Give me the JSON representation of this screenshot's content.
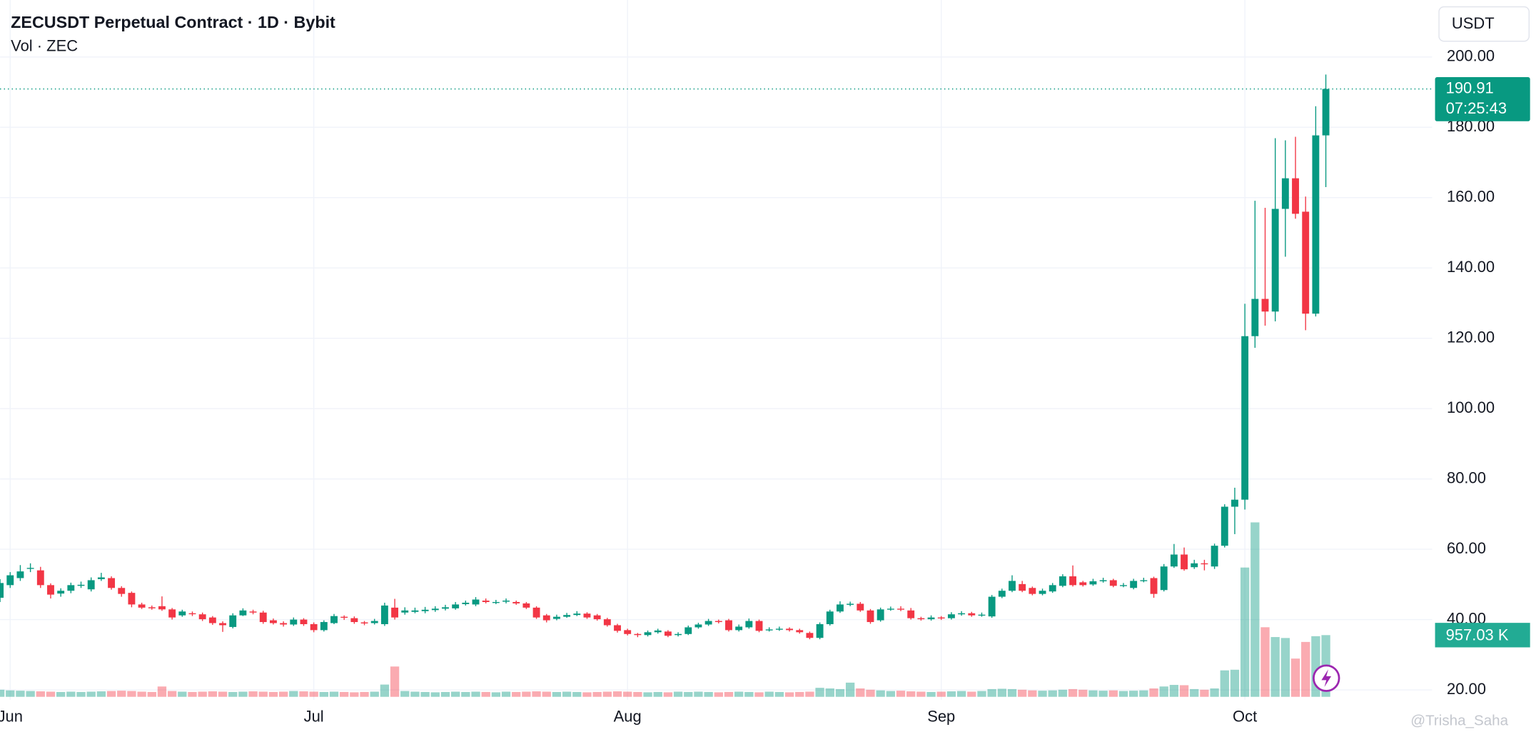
{
  "chart_data": {
    "type": "candlestick",
    "title": "ZECUSDT Perpetual Contract · 1D · Bybit",
    "subtitle": "Vol · ZEC",
    "currency": "USDT",
    "up_color": "#089981",
    "down_color": "#f23645",
    "open": [
      46.2,
      49.8,
      51.8,
      54.5,
      54.0,
      49.8,
      47.4,
      48.2,
      49.6,
      48.6,
      51.5,
      51.8,
      49.0,
      47.6,
      44.3,
      43.5,
      43.8,
      42.9,
      41.2,
      41.8,
      41.5,
      40.6,
      39.0,
      37.9,
      41.2,
      42.3,
      42.0,
      39.8,
      39.0,
      38.6,
      40.0,
      38.7,
      37.0,
      39.0,
      40.8,
      40.4,
      39.2,
      39.0,
      38.7,
      43.4,
      42.0,
      42.2,
      42.4,
      42.7,
      43.1,
      43.2,
      44.4,
      44.3,
      45.4,
      44.8,
      45.1,
      45.0,
      44.6,
      43.4,
      41.2,
      40.2,
      40.8,
      41.3,
      41.7,
      41.2,
      40.1,
      38.4,
      37.0,
      35.9,
      35.6,
      36.4,
      36.6,
      35.6,
      35.9,
      37.8,
      38.6,
      39.6,
      39.8,
      37.0,
      37.8,
      39.6,
      37.0,
      37.2,
      37.4,
      37.0,
      36.2,
      34.8,
      38.7,
      42.3,
      44.2,
      44.5,
      42.6,
      39.8,
      42.9,
      43.1,
      42.6,
      40.4,
      40.1,
      40.6,
      40.4,
      41.5,
      41.8,
      41.2,
      40.9,
      46.5,
      48.2,
      50.1,
      49.0,
      47.3,
      48.0,
      49.6,
      52.3,
      50.6,
      50.0,
      50.9,
      51.2,
      49.6,
      49.0,
      51.0,
      51.8,
      48.4,
      55.1,
      58.5,
      54.9,
      56.0,
      55.1,
      61.0,
      72.1,
      74.1,
      120.6,
      131.2,
      127.6,
      156.8,
      165.5,
      156.0,
      127.0,
      177.7
    ],
    "high": [
      51.5,
      53.5,
      55.5,
      56.0,
      55.0,
      50.3,
      48.9,
      50.5,
      50.8,
      52.0,
      53.3,
      52.3,
      49.5,
      48.0,
      44.8,
      44.0,
      46.6,
      43.3,
      42.8,
      42.3,
      42.0,
      41.0,
      39.5,
      41.8,
      43.2,
      42.8,
      42.5,
      40.3,
      39.5,
      40.6,
      40.4,
      39.2,
      39.8,
      41.6,
      41.2,
      40.9,
      39.6,
      40.2,
      44.8,
      45.9,
      43.5,
      43.4,
      43.6,
      43.8,
      44.2,
      45.0,
      45.4,
      46.4,
      46.0,
      45.6,
      46.0,
      45.4,
      45.0,
      43.8,
      41.6,
      41.4,
      41.9,
      42.4,
      42.1,
      41.6,
      40.5,
      38.8,
      37.4,
      36.2,
      36.9,
      37.4,
      37.0,
      36.4,
      38.3,
      39.1,
      40.2,
      40.0,
      40.2,
      38.6,
      40.3,
      40.0,
      37.8,
      38.0,
      37.8,
      37.4,
      36.6,
      39.2,
      42.8,
      45.2,
      45.1,
      45.0,
      43.0,
      43.4,
      43.7,
      43.8,
      43.3,
      40.8,
      41.2,
      41.0,
      42.1,
      42.4,
      42.2,
      42.0,
      47.0,
      48.8,
      52.6,
      51.0,
      49.4,
      48.8,
      50.4,
      52.9,
      55.4,
      51.0,
      51.6,
      51.9,
      51.6,
      50.4,
      51.6,
      51.9,
      52.2,
      55.8,
      61.5,
      60.5,
      57.0,
      57.0,
      61.6,
      72.8,
      77.5,
      129.8,
      159.1,
      157.1,
      176.9,
      176.3,
      177.3,
      160.3,
      186.0,
      195.0
    ],
    "low": [
      45.0,
      49.0,
      51.0,
      53.5,
      49.0,
      46.0,
      46.5,
      47.5,
      49.0,
      48.0,
      51.0,
      48.5,
      46.5,
      43.5,
      43.0,
      42.8,
      42.5,
      40.0,
      40.8,
      41.0,
      39.6,
      38.5,
      36.5,
      37.5,
      41.0,
      41.5,
      38.8,
      38.6,
      38.0,
      38.2,
      38.2,
      36.4,
      36.6,
      38.7,
      39.9,
      38.8,
      38.4,
      38.6,
      38.2,
      40.0,
      41.4,
      41.8,
      41.8,
      42.2,
      42.6,
      42.8,
      44.0,
      43.8,
      44.6,
      44.4,
      44.6,
      44.2,
      43.0,
      40.2,
      39.2,
      39.8,
      40.5,
      41.0,
      40.2,
      39.7,
      38.0,
      36.3,
      35.5,
      35.0,
      35.2,
      36.0,
      35.0,
      35.2,
      35.6,
      37.4,
      38.2,
      38.9,
      36.6,
      36.6,
      37.4,
      36.4,
      36.6,
      36.8,
      36.6,
      36.0,
      34.4,
      34.4,
      38.3,
      41.9,
      43.8,
      42.2,
      38.8,
      39.4,
      42.5,
      42.4,
      40.0,
      39.7,
      39.7,
      39.9,
      40.0,
      41.1,
      40.8,
      40.8,
      40.5,
      46.1,
      47.8,
      47.8,
      46.9,
      46.9,
      47.6,
      49.2,
      49.4,
      49.4,
      49.6,
      50.5,
      49.2,
      49.2,
      48.6,
      50.6,
      46.2,
      48.0,
      54.7,
      53.9,
      54.4,
      54.0,
      54.4,
      60.5,
      64.3,
      71.3,
      117.3,
      123.6,
      124.8,
      143.2,
      154.0,
      122.3,
      126.2,
      163.0
    ],
    "close": [
      50.4,
      52.6,
      53.7,
      54.7,
      49.8,
      47.1,
      48.2,
      49.8,
      49.9,
      51.2,
      52.0,
      49.0,
      47.3,
      44.3,
      43.4,
      43.2,
      42.9,
      40.6,
      42.3,
      41.6,
      40.1,
      39.0,
      38.4,
      41.2,
      42.6,
      42.0,
      39.3,
      39.0,
      38.6,
      40.0,
      38.7,
      37.0,
      39.3,
      41.0,
      40.6,
      39.3,
      38.9,
      39.6,
      44.0,
      40.6,
      42.6,
      42.6,
      42.8,
      43.1,
      43.5,
      44.3,
      44.8,
      45.7,
      45.0,
      45.0,
      45.4,
      44.6,
      43.4,
      40.6,
      39.8,
      40.8,
      41.3,
      41.7,
      40.6,
      40.1,
      38.4,
      36.8,
      35.9,
      35.6,
      36.4,
      36.9,
      35.4,
      35.9,
      37.8,
      38.6,
      39.6,
      39.3,
      37.0,
      38.0,
      39.6,
      36.8,
      37.2,
      37.4,
      37.0,
      36.4,
      34.8,
      38.7,
      42.3,
      44.3,
      44.5,
      42.6,
      39.3,
      42.9,
      43.1,
      42.9,
      40.4,
      40.1,
      40.6,
      40.4,
      41.5,
      41.8,
      41.2,
      41.4,
      46.5,
      48.2,
      51.0,
      48.2,
      47.3,
      48.2,
      49.8,
      52.3,
      49.8,
      49.8,
      50.9,
      51.2,
      49.6,
      49.8,
      51.0,
      51.2,
      47.3,
      55.1,
      58.5,
      54.3,
      56.0,
      55.8,
      61.0,
      72.1,
      74.1,
      120.6,
      131.2,
      127.6,
      156.8,
      165.5,
      155.4,
      127.0,
      177.7,
      190.91
    ],
    "volume": [
      110,
      100,
      95,
      90,
      85,
      80,
      75,
      80,
      75,
      80,
      85,
      90,
      95,
      90,
      80,
      75,
      160,
      90,
      80,
      75,
      80,
      85,
      80,
      75,
      80,
      85,
      80,
      75,
      80,
      90,
      85,
      80,
      75,
      80,
      75,
      70,
      75,
      80,
      190,
      470,
      90,
      80,
      75,
      70,
      75,
      80,
      75,
      80,
      75,
      70,
      80,
      75,
      80,
      85,
      80,
      75,
      80,
      75,
      70,
      75,
      80,
      85,
      80,
      75,
      70,
      75,
      70,
      80,
      75,
      80,
      75,
      70,
      75,
      80,
      75,
      70,
      80,
      75,
      70,
      75,
      80,
      140,
      130,
      120,
      220,
      130,
      110,
      100,
      90,
      95,
      85,
      80,
      75,
      80,
      85,
      90,
      80,
      90,
      120,
      125,
      120,
      110,
      100,
      95,
      100,
      110,
      120,
      110,
      100,
      95,
      100,
      90,
      95,
      100,
      130,
      160,
      185,
      180,
      120,
      110,
      130,
      410,
      420,
      2005,
      2705,
      1079,
      927,
      912,
      593,
      851,
      940,
      957.03
    ],
    "volume_label": "957.03 K",
    "last_price": 190.91,
    "countdown": "07:25:43",
    "xlim": [
      0,
      141.5
    ],
    "xticks": [
      {
        "value": 1,
        "label": "Jun"
      },
      {
        "value": 31,
        "label": "Jul"
      },
      {
        "value": 62,
        "label": "Aug"
      },
      {
        "value": 93,
        "label": "Sep"
      },
      {
        "value": 123,
        "label": "Oct"
      }
    ],
    "ylim": [
      17.2,
      216.2
    ],
    "yticks": [
      {
        "value": 20,
        "label": "20.00"
      },
      {
        "value": 40,
        "label": "40.00"
      },
      {
        "value": 60,
        "label": "60.00"
      },
      {
        "value": 80,
        "label": "80.00"
      },
      {
        "value": 100,
        "label": "100.00"
      },
      {
        "value": 120,
        "label": "120.00"
      },
      {
        "value": 140,
        "label": "140.00"
      },
      {
        "value": 160,
        "label": "160.00"
      },
      {
        "value": 180,
        "label": "180.00"
      },
      {
        "value": 200,
        "label": "200.00"
      }
    ],
    "grid": true,
    "watermark": "@Trisha_Saha"
  }
}
